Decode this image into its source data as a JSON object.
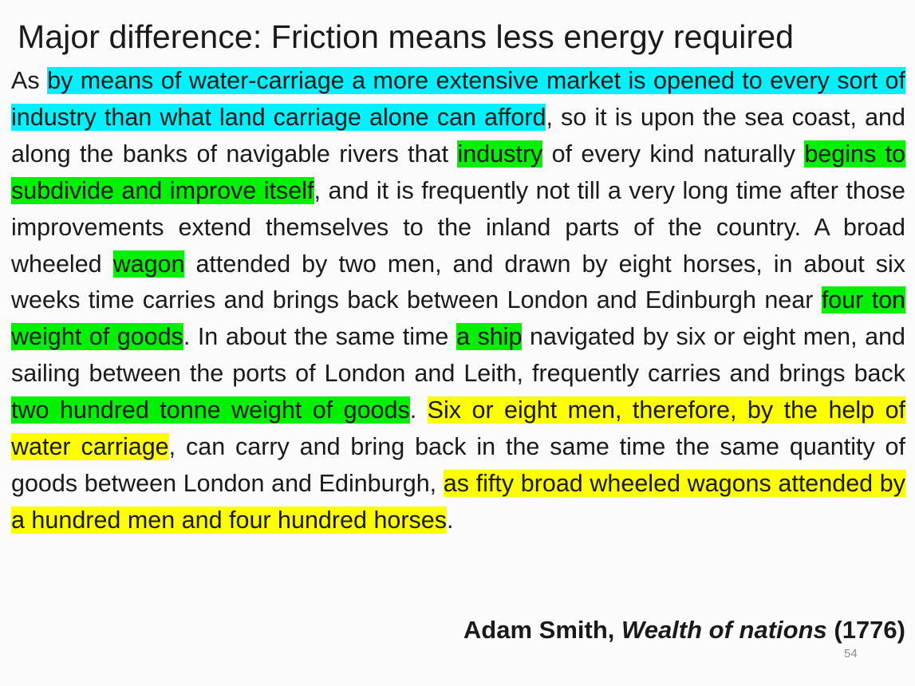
{
  "slide": {
    "title": "Major difference: Friction means less energy required",
    "quote_segments": [
      {
        "text": "As ",
        "highlight": "none"
      },
      {
        "text": "by means of water-carriage a more extensive market is opened to every sort of industry than what land carriage alone can afford",
        "highlight": "cyan"
      },
      {
        "text": ", so it is upon the sea coast, and along the banks of navigable rivers that ",
        "highlight": "none"
      },
      {
        "text": "industry",
        "highlight": "green"
      },
      {
        "text": " of every kind naturally ",
        "highlight": "none"
      },
      {
        "text": "begins to subdivide and improve itself",
        "highlight": "green"
      },
      {
        "text": ", and it is frequently not till a very long time after those improvements extend themselves to the inland parts of the country.  A broad wheeled ",
        "highlight": "none"
      },
      {
        "text": "wagon",
        "highlight": "green"
      },
      {
        "text": " attended by two men, and drawn by eight horses, in about six weeks time carries and brings back between London and Edinburgh near ",
        "highlight": "none"
      },
      {
        "text": "four ton weight of goods",
        "highlight": "green"
      },
      {
        "text": ".  In about the same time ",
        "highlight": "none"
      },
      {
        "text": "a ship",
        "highlight": "green"
      },
      {
        "text": " navigated by six or eight men, and sailing between the ports of London and Leith, frequently carries and brings back ",
        "highlight": "none"
      },
      {
        "text": "two hundred tonne weight of goods",
        "highlight": "green"
      },
      {
        "text": ". ",
        "highlight": "none"
      },
      {
        "text": "Six or eight men, therefore, by the help of water carriage",
        "highlight": "yellow"
      },
      {
        "text": ", can carry and bring back in the same time the same quantity of goods between London and Edinburgh, ",
        "highlight": "none"
      },
      {
        "text": "as fifty broad wheeled wagons attended by a hundred men and four hundred horses",
        "highlight": "yellow"
      },
      {
        "text": ".",
        "highlight": "none"
      }
    ],
    "citation": {
      "author": "Adam Smith, ",
      "work": "Wealth of nations",
      "year": " (1776)"
    },
    "page_number": "54"
  },
  "colors": {
    "cyan": "#00f0ff",
    "green": "#00f000",
    "yellow": "#ffff00",
    "text": "#1a1a1a",
    "page_number": "#8a8a8a"
  }
}
